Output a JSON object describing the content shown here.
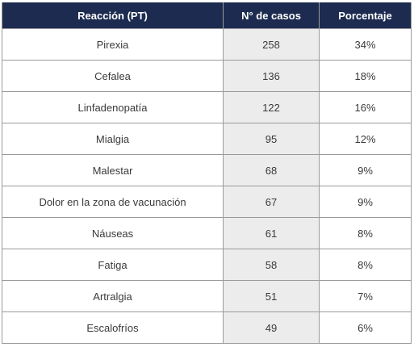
{
  "table": {
    "headers": [
      "Reacción (PT)",
      "N° de casos",
      "Porcentaje"
    ],
    "rows": [
      {
        "reaction": "Pirexia",
        "cases": "258",
        "percent": "34%"
      },
      {
        "reaction": "Cefalea",
        "cases": "136",
        "percent": "18%"
      },
      {
        "reaction": "Linfadenopatía",
        "cases": "122",
        "percent": "16%"
      },
      {
        "reaction": "Mialgia",
        "cases": "95",
        "percent": "12%"
      },
      {
        "reaction": "Malestar",
        "cases": "68",
        "percent": "9%"
      },
      {
        "reaction": "Dolor en la zona de vacunación",
        "cases": "67",
        "percent": "9%"
      },
      {
        "reaction": "Náuseas",
        "cases": "61",
        "percent": "8%"
      },
      {
        "reaction": "Fatiga",
        "cases": "58",
        "percent": "8%"
      },
      {
        "reaction": "Artralgia",
        "cases": "51",
        "percent": "7%"
      },
      {
        "reaction": "Escalofríos",
        "cases": "49",
        "percent": "6%"
      }
    ]
  },
  "colors": {
    "header_background": "#1c2b4f",
    "header_text": "#ffffff",
    "cases_column_background": "#ececec"
  }
}
